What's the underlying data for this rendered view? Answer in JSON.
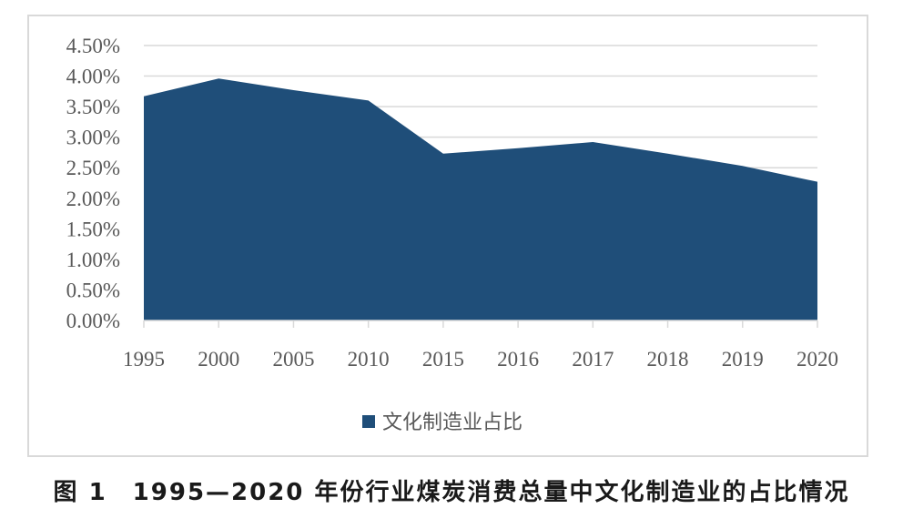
{
  "chart_data": {
    "type": "area",
    "categories": [
      "1995",
      "2000",
      "2005",
      "2010",
      "2015",
      "2016",
      "2017",
      "2018",
      "2019",
      "2020"
    ],
    "series": [
      {
        "name": "文化制造业占比",
        "color": "#1f4e79",
        "values": [
          3.67,
          3.96,
          3.77,
          3.6,
          2.73,
          2.82,
          2.92,
          2.73,
          2.53,
          2.27
        ]
      }
    ],
    "y_ticks": [
      "0.00%",
      "0.50%",
      "1.00%",
      "1.50%",
      "2.00%",
      "2.50%",
      "3.00%",
      "3.50%",
      "4.00%",
      "4.50%"
    ],
    "ylim": [
      0,
      4.5
    ],
    "y_unit": "%",
    "grid": true,
    "legend_position": "bottom"
  },
  "caption": "图 1　1995—2020 年份行业煤炭消费总量中文化制造业的占比情况"
}
